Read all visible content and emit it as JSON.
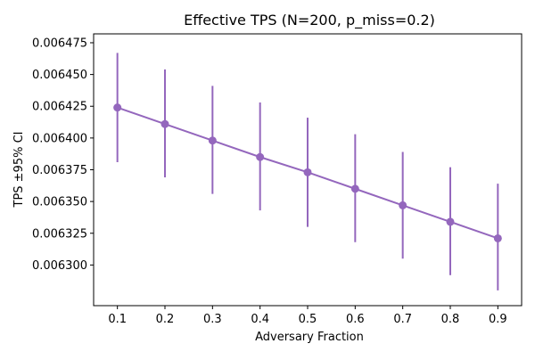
{
  "chart_data": {
    "type": "line",
    "title": "Effective TPS (N=200, p_miss=0.2)",
    "xlabel": "Adversary Fraction",
    "ylabel": "TPS ±95% CI",
    "x": [
      0.1,
      0.2,
      0.3,
      0.4,
      0.5,
      0.6,
      0.7,
      0.8,
      0.9
    ],
    "x_tick_labels": [
      "0.1",
      "0.2",
      "0.3",
      "0.4",
      "0.5",
      "0.6",
      "0.7",
      "0.8",
      "0.9"
    ],
    "y_ticks": [
      0.0063,
      0.006325,
      0.00635,
      0.006375,
      0.0064,
      0.006425,
      0.00645,
      0.006475
    ],
    "y_tick_labels": [
      "0.006300",
      "0.006325",
      "0.006350",
      "0.006375",
      "0.006400",
      "0.006425",
      "0.006450",
      "0.006475"
    ],
    "series": [
      {
        "values": [
          0.006424,
          0.006411,
          0.006398,
          0.006385,
          0.006373,
          0.00636,
          0.006347,
          0.006334,
          0.006321
        ],
        "ci_lower": [
          0.006381,
          0.006369,
          0.006356,
          0.006343,
          0.00633,
          0.006318,
          0.006305,
          0.006292,
          0.00628
        ],
        "ci_upper": [
          0.006467,
          0.006454,
          0.006441,
          0.006428,
          0.006416,
          0.006403,
          0.006389,
          0.006377,
          0.006364
        ],
        "color": "#9467bd"
      }
    ],
    "xlim": [
      0.05,
      0.95
    ],
    "ylim": [
      0.006268,
      0.006482
    ],
    "grid": false,
    "legend": false
  }
}
